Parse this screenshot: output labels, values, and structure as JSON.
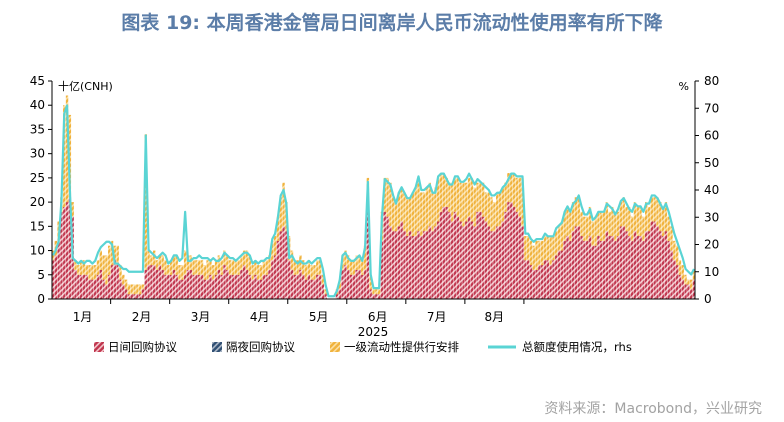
{
  "title": "图表 19: 本周香港金管局日间离岸人民币流动性使用率有所下降",
  "source": "资料来源：Macrobond，兴业研究",
  "chart_data": {
    "type": "bar",
    "stacked": true,
    "ylabel_left": "十亿(CNH)",
    "ylabel_right": "%",
    "xlabel": "2025",
    "ylim_left": [
      0,
      45
    ],
    "ylim_right": [
      0,
      80
    ],
    "yticks_left": [
      "0",
      "5",
      "10",
      "15",
      "20",
      "25",
      "30",
      "35",
      "40",
      "45"
    ],
    "yticks_right": [
      "0",
      "10",
      "20",
      "30",
      "40",
      "50",
      "60",
      "70",
      "80"
    ],
    "months": [
      "1月",
      "2月",
      "3月",
      "4月",
      "5月",
      "6月",
      "7月",
      "8月"
    ],
    "legend_position": "bottom",
    "colors": {
      "intraday": "#c0364e",
      "overnight": "#2f4f73",
      "liquidity": "#f0b23c",
      "usage": "#5ad4d4"
    },
    "series": [
      {
        "name": "日间回购协议",
        "key": "intraday",
        "kind": "bar",
        "axis": "left",
        "values": [
          8,
          9,
          12,
          18,
          19,
          20,
          21,
          17,
          6,
          5,
          5,
          5,
          5,
          4,
          4,
          4,
          5,
          6,
          4,
          3,
          5,
          7,
          8,
          7,
          4,
          3,
          2,
          1,
          1,
          1,
          1,
          1,
          2,
          6,
          7,
          7,
          7,
          6,
          7,
          6,
          5,
          5,
          5,
          6,
          5,
          4,
          4,
          5,
          6,
          6,
          5,
          5,
          5,
          5,
          4,
          4,
          5,
          4,
          5,
          6,
          5,
          7,
          6,
          5,
          5,
          5,
          5,
          6,
          7,
          6,
          5,
          4,
          5,
          4,
          4,
          5,
          5,
          6,
          8,
          9,
          12,
          14,
          15,
          14,
          8,
          6,
          5,
          5,
          6,
          5,
          4,
          5,
          4,
          4,
          5,
          5,
          3,
          1,
          0,
          0,
          0,
          1,
          2,
          6,
          7,
          6,
          5,
          5,
          6,
          6,
          5,
          6,
          18,
          2,
          1,
          1,
          1,
          12,
          18,
          17,
          15,
          14,
          14,
          15,
          16,
          14,
          13,
          14,
          13,
          13,
          14,
          13,
          14,
          14,
          15,
          14,
          15,
          16,
          18,
          19,
          19,
          18,
          16,
          18,
          17,
          16,
          15,
          16,
          17,
          16,
          15,
          18,
          18,
          17,
          16,
          15,
          14,
          14,
          15,
          15,
          16,
          18,
          20,
          20,
          19,
          18,
          17,
          15,
          8,
          8,
          7,
          6,
          6,
          7,
          7,
          8,
          8,
          7,
          8,
          9,
          10,
          10,
          12,
          13,
          12,
          14,
          15,
          15,
          13,
          12,
          12,
          13,
          11,
          11,
          13,
          12,
          12,
          14,
          13,
          13,
          12,
          13,
          15,
          15,
          14,
          13,
          12,
          14,
          13,
          13,
          12,
          14,
          14,
          16,
          16,
          15,
          14,
          13,
          14,
          12,
          10,
          8,
          7,
          5,
          4,
          3,
          3,
          2,
          4
        ]
      },
      {
        "name": "隔夜回购协议",
        "key": "overnight",
        "kind": "bar",
        "axis": "left",
        "values": [
          0,
          0,
          0,
          0,
          0,
          0,
          0,
          0,
          0,
          0,
          0,
          0,
          0,
          0,
          0,
          0,
          0,
          0,
          0,
          0,
          0,
          0,
          0,
          0,
          0,
          0,
          0,
          0,
          0,
          0,
          0,
          0,
          0,
          0,
          0,
          0,
          0,
          0,
          0,
          0,
          0,
          0,
          0,
          0,
          0,
          0,
          0,
          0,
          0,
          0,
          0,
          0,
          0,
          0,
          0,
          0,
          0,
          0,
          0,
          0,
          0,
          0,
          0,
          0,
          0,
          0,
          0,
          0,
          0,
          0,
          0,
          0,
          0,
          0,
          0,
          0,
          0,
          0,
          0,
          0,
          0,
          0,
          0,
          0,
          0,
          0,
          0,
          0,
          0,
          0,
          0,
          0,
          0,
          0,
          0,
          0,
          0,
          0,
          0,
          0,
          0,
          0,
          0,
          0,
          0,
          0,
          0,
          0,
          0,
          0,
          0,
          0,
          0,
          0,
          0,
          0,
          0,
          0,
          0,
          0,
          0,
          0,
          0,
          0,
          0,
          0,
          0,
          0,
          0,
          0,
          0,
          0,
          0,
          0,
          0,
          0,
          0,
          0,
          0,
          0,
          0,
          0,
          0,
          0,
          0,
          0,
          0,
          0,
          0,
          0,
          0,
          0,
          0,
          0,
          0,
          0,
          0,
          0,
          0,
          0,
          0,
          0,
          0,
          0,
          0,
          0,
          0,
          0,
          0,
          0,
          0,
          0,
          0,
          0,
          0,
          0,
          0,
          0,
          0,
          0,
          0,
          0,
          0,
          0,
          0,
          0,
          0,
          0,
          0,
          0,
          0,
          0,
          0,
          0,
          0,
          0,
          0,
          0,
          0,
          0,
          0,
          0,
          0,
          0,
          0,
          0,
          0,
          0,
          0,
          0,
          0,
          0,
          0,
          0,
          0,
          0,
          0,
          0,
          0,
          0,
          0,
          0,
          0,
          0,
          0,
          0,
          0,
          0,
          0,
          0,
          0,
          0,
          0,
          0,
          0
        ]
      },
      {
        "name": "一级流动性提供行安排",
        "key": "liquidity",
        "kind": "bar",
        "axis": "left",
        "values": [
          2,
          3,
          4,
          3,
          21,
          22,
          17,
          3,
          2,
          2,
          3,
          3,
          2,
          3,
          3,
          3,
          3,
          4,
          5,
          6,
          6,
          5,
          3,
          4,
          3,
          2,
          2,
          2,
          2,
          2,
          2,
          2,
          1,
          28,
          3,
          2,
          3,
          2,
          2,
          3,
          3,
          2,
          3,
          3,
          4,
          3,
          3,
          5,
          3,
          3,
          3,
          3,
          3,
          3,
          3,
          4,
          3,
          3,
          3,
          3,
          3,
          3,
          3,
          3,
          3,
          3,
          3,
          3,
          3,
          4,
          4,
          3,
          3,
          3,
          3,
          3,
          3,
          3,
          4,
          4,
          5,
          7,
          9,
          6,
          5,
          4,
          3,
          3,
          3,
          3,
          3,
          3,
          3,
          3,
          3,
          3,
          2,
          1,
          0,
          0,
          0,
          1,
          2,
          3,
          3,
          3,
          3,
          3,
          3,
          3,
          3,
          5,
          7,
          3,
          1,
          1,
          1,
          6,
          7,
          8,
          9,
          7,
          6,
          7,
          7,
          8,
          8,
          7,
          9,
          10,
          11,
          9,
          8,
          9,
          9,
          8,
          8,
          9,
          8,
          7,
          6,
          6,
          8,
          7,
          8,
          8,
          9,
          8,
          8,
          9,
          8,
          6,
          6,
          7,
          6,
          7,
          7,
          6,
          7,
          7,
          7,
          6,
          6,
          6,
          7,
          7,
          8,
          10,
          5,
          5,
          5,
          5,
          6,
          5,
          5,
          5,
          5,
          6,
          5,
          5,
          5,
          6,
          6,
          6,
          6,
          6,
          6,
          6,
          5,
          5,
          5,
          6,
          5,
          6,
          5,
          6,
          6,
          6,
          5,
          6,
          6,
          5,
          5,
          6,
          5,
          6,
          5,
          6,
          6,
          6,
          5,
          6,
          5,
          5,
          5,
          6,
          6,
          6,
          6,
          5,
          5,
          4,
          4,
          3,
          3,
          2,
          1,
          2,
          2
        ]
      },
      {
        "name": "总额度使用情况，rhs",
        "key": "usage",
        "kind": "line",
        "axis": "right",
        "values": [
          16,
          18,
          21,
          36,
          68,
          71,
          40,
          15,
          14,
          13,
          14,
          13,
          14,
          14,
          13,
          14,
          17,
          19,
          20,
          21,
          21,
          20,
          13,
          13,
          12,
          11,
          11,
          10,
          10,
          10,
          10,
          10,
          10,
          60,
          18,
          17,
          16,
          15,
          16,
          17,
          16,
          13,
          14,
          16,
          16,
          14,
          15,
          32,
          14,
          14,
          15,
          15,
          16,
          15,
          15,
          15,
          14,
          15,
          14,
          14,
          15,
          17,
          16,
          15,
          15,
          14,
          15,
          16,
          17,
          17,
          16,
          13,
          14,
          13,
          14,
          14,
          15,
          15,
          22,
          24,
          30,
          38,
          40,
          35,
          15,
          16,
          14,
          13,
          14,
          13,
          13,
          14,
          13,
          14,
          15,
          15,
          11,
          5,
          1,
          1,
          1,
          3,
          7,
          16,
          17,
          15,
          14,
          14,
          15,
          16,
          14,
          19,
          43,
          9,
          4,
          4,
          4,
          30,
          44,
          43,
          42,
          38,
          35,
          39,
          41,
          39,
          37,
          37,
          39,
          41,
          45,
          40,
          40,
          41,
          42,
          39,
          39,
          45,
          46,
          46,
          44,
          42,
          42,
          45,
          45,
          43,
          43,
          44,
          46,
          44,
          42,
          44,
          43,
          42,
          41,
          40,
          38,
          38,
          39,
          39,
          41,
          42,
          44,
          46,
          46,
          45,
          45,
          45,
          24,
          24,
          22,
          21,
          22,
          22,
          22,
          24,
          23,
          23,
          23,
          26,
          27,
          28,
          32,
          34,
          32,
          35,
          36,
          38,
          34,
          31,
          31,
          33,
          29,
          30,
          32,
          32,
          32,
          35,
          34,
          33,
          31,
          33,
          36,
          37,
          35,
          33,
          32,
          35,
          34,
          34,
          32,
          35,
          35,
          38,
          38,
          37,
          35,
          33,
          35,
          32,
          28,
          24,
          21,
          18,
          15,
          11,
          10,
          9,
          11
        ]
      }
    ]
  }
}
